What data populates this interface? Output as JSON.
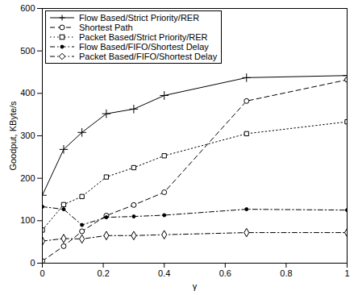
{
  "chart_data": {
    "type": "line",
    "x_label": "γ",
    "y_label": "Goodput, KByte/s",
    "x": [
      0,
      0.07,
      0.13,
      0.21,
      0.3,
      0.4,
      0.67,
      1
    ],
    "xlim": [
      0,
      1
    ],
    "xticks": [
      0,
      0.2,
      0.4,
      0.6,
      0.8,
      1
    ],
    "ylim": [
      0,
      600
    ],
    "yticks": [
      0,
      100,
      200,
      300,
      400,
      500,
      600
    ],
    "grid": false,
    "legend": "top-left",
    "series": [
      {
        "name": "Flow Based/Strict Priority/RER",
        "color": "#000000",
        "marker": "plus",
        "line_style": "solid",
        "values": [
          160,
          268,
          308,
          352,
          363,
          395,
          437,
          442
        ]
      },
      {
        "name": "Shortest Path",
        "color": "#000000",
        "marker": "circle",
        "line_style": "dashed",
        "values": [
          5,
          40,
          75,
          112,
          137,
          167,
          382,
          432
        ]
      },
      {
        "name": "Packet Based/Strict Priority/RER",
        "color": "#000000",
        "marker": "square",
        "line_style": "dotted",
        "values": [
          78,
          138,
          157,
          203,
          225,
          253,
          305,
          333
        ]
      },
      {
        "name": "Flow Based/FIFO/Shortest Delay",
        "color": "#000000",
        "marker": "point",
        "line_style": "dashdot",
        "values": [
          133,
          127,
          90,
          108,
          110,
          113,
          127,
          125
        ]
      },
      {
        "name": "Packet Based/FIFO/Shortest Delay",
        "color": "#000000",
        "marker": "diamond",
        "line_style": "dashdot",
        "values": [
          52,
          58,
          57,
          65,
          65,
          67,
          72,
          72
        ]
      }
    ]
  }
}
